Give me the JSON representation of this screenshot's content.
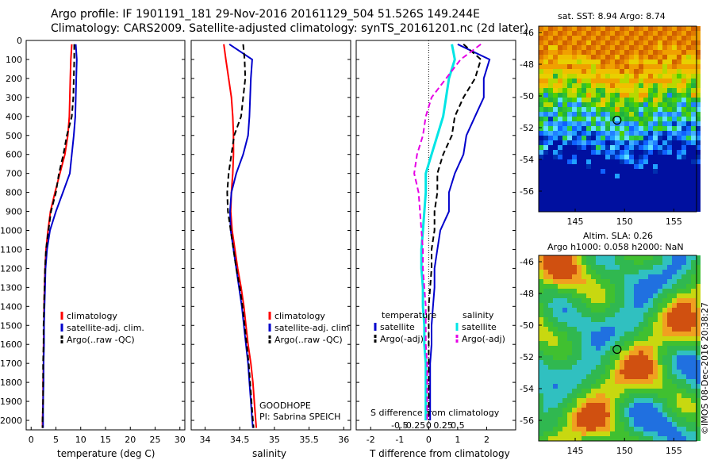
{
  "header": {
    "line1": "Argo profile: IF 1901191_181 29-Nov-2016 20161129_504 51.526S 149.244E",
    "line2": "Climatology: CARS2009. Satellite-adjusted climatology: synTS_20161201.nc (2d later)"
  },
  "maps": {
    "sst": {
      "title": "sat. SST: 8.94 Argo: 8.74"
    },
    "sla": {
      "title_line1": "Altim. SLA: 0.26",
      "title_line2": "Argo h1000: 0.058 h2000: NaN"
    },
    "lat_ticks": [
      "-46",
      "-48",
      "-50",
      "-52",
      "-54",
      "-56"
    ],
    "lon_ticks": [
      "145",
      "150",
      "155"
    ],
    "argo_marker": {
      "lon": 149.244,
      "lat": -51.526
    }
  },
  "watermark": "©IMOS 08-Dec-2016 20:38:27",
  "panels": {
    "depth_ticks": [
      "0",
      "100",
      "200",
      "300",
      "400",
      "500",
      "600",
      "700",
      "800",
      "900",
      "1000",
      "1100",
      "1200",
      "1300",
      "1400",
      "1500",
      "1600",
      "1700",
      "1800",
      "1900",
      "2000"
    ],
    "temperature": {
      "xlabel": "temperature (deg C)",
      "xticks": [
        "0",
        "5",
        "10",
        "15",
        "20",
        "25",
        "30"
      ],
      "legend": [
        "climatology",
        "satellite-adj. clim.",
        "Argo(..raw -QC)"
      ]
    },
    "salinity": {
      "xlabel": "salinity",
      "xticks": [
        "34",
        "34.5",
        "35",
        "35.5",
        "36"
      ],
      "legend": [
        "climatology",
        "satellite-adj. clim.",
        "Argo(..raw -QC)"
      ],
      "note1": "GOODHOPE",
      "note2": "PI: Sabrina SPEICH"
    },
    "difference": {
      "xlabel": "T difference from climatology",
      "top_label": "S difference from climatology",
      "t_ticks": [
        "-2",
        "-1",
        "0",
        "1",
        "2"
      ],
      "s_ticks": [
        "-0.5",
        "-0.25",
        "0",
        "0.25",
        "0.5"
      ],
      "legend_head_left": "temperature",
      "legend_head_right": "salinity",
      "legend": [
        "satellite",
        "Argo(-adj)",
        "satellite",
        "Argo(-adj)"
      ]
    }
  },
  "chart_data": [
    {
      "type": "line",
      "title": "",
      "xlabel": "temperature (deg C)",
      "ylabel": "",
      "xlim": [
        -1,
        31
      ],
      "ylim": [
        2050,
        0
      ],
      "series": [
        {
          "name": "climatology",
          "color": "#ff0000",
          "x": [
            8.2,
            8.0,
            7.9,
            7.8,
            7.7,
            7.4,
            6.8,
            5.8,
            4.8,
            3.9,
            3.4,
            3.0,
            2.8,
            2.7,
            2.6,
            2.6,
            2.5,
            2.5,
            2.4,
            2.4,
            2.3,
            2.3
          ],
          "y": [
            20,
            100,
            200,
            300,
            400,
            500,
            600,
            700,
            800,
            900,
            1000,
            1100,
            1200,
            1300,
            1400,
            1500,
            1600,
            1700,
            1800,
            1900,
            2000,
            2040
          ]
        },
        {
          "name": "satellite-adj. clim.",
          "color": "#0000cc",
          "x": [
            9.0,
            9.2,
            9.1,
            9.0,
            8.9,
            8.6,
            8.2,
            7.8,
            6.4,
            5.0,
            3.8,
            3.2,
            2.9,
            2.8,
            2.7,
            2.6,
            2.6,
            2.5,
            2.5,
            2.4,
            2.4,
            2.4
          ],
          "y": [
            20,
            100,
            200,
            300,
            400,
            500,
            600,
            700,
            800,
            900,
            1000,
            1100,
            1200,
            1300,
            1400,
            1500,
            1600,
            1700,
            1800,
            1900,
            2000,
            2040
          ]
        },
        {
          "name": "Argo(..raw -QC)",
          "color": "#000000",
          "x": [
            8.7,
            8.7,
            8.6,
            8.5,
            8.2,
            7.2,
            6.5,
            5.6,
            5.0,
            4.0,
            3.5,
            3.0,
            2.8,
            2.7,
            2.6,
            2.5,
            2.5,
            2.4,
            2.4,
            2.4,
            2.3,
            2.3
          ],
          "y": [
            20,
            100,
            200,
            300,
            400,
            500,
            600,
            700,
            800,
            900,
            1000,
            1100,
            1200,
            1300,
            1400,
            1500,
            1600,
            1700,
            1800,
            1900,
            2000,
            2040
          ]
        }
      ]
    },
    {
      "type": "line",
      "title": "",
      "xlabel": "salinity",
      "ylabel": "",
      "xlim": [
        33.8,
        36.1
      ],
      "ylim": [
        2050,
        0
      ],
      "series": [
        {
          "name": "climatology",
          "color": "#ff0000",
          "x": [
            34.27,
            34.3,
            34.34,
            34.38,
            34.4,
            34.41,
            34.41,
            34.4,
            34.38,
            34.37,
            34.39,
            34.43,
            34.47,
            34.52,
            34.56,
            34.59,
            34.62,
            34.66,
            34.69,
            34.71,
            34.73,
            34.74
          ],
          "y": [
            20,
            100,
            200,
            300,
            400,
            500,
            600,
            700,
            800,
            900,
            1000,
            1100,
            1200,
            1300,
            1400,
            1500,
            1600,
            1700,
            1800,
            1900,
            2000,
            2040
          ]
        },
        {
          "name": "satellite-adj. clim.",
          "color": "#0000cc",
          "x": [
            34.35,
            34.68,
            34.66,
            34.65,
            34.64,
            34.62,
            34.55,
            34.45,
            34.38,
            34.36,
            34.37,
            34.41,
            34.45,
            34.49,
            34.53,
            34.56,
            34.59,
            34.62,
            34.64,
            34.66,
            34.68,
            34.69
          ],
          "y": [
            20,
            100,
            200,
            300,
            400,
            500,
            600,
            700,
            800,
            900,
            1000,
            1100,
            1200,
            1300,
            1400,
            1500,
            1600,
            1700,
            1800,
            1900,
            2000,
            2040
          ]
        },
        {
          "name": "Argo(..raw -QC)",
          "color": "#000000",
          "x": [
            34.55,
            34.57,
            34.58,
            34.55,
            34.52,
            34.42,
            34.38,
            34.34,
            34.32,
            34.33,
            34.37,
            34.41,
            34.45,
            34.5,
            34.54,
            34.57,
            34.6,
            34.63,
            34.65,
            34.67,
            34.69,
            34.7
          ],
          "y": [
            20,
            100,
            200,
            300,
            400,
            500,
            600,
            700,
            800,
            900,
            1000,
            1100,
            1200,
            1300,
            1400,
            1500,
            1600,
            1700,
            1800,
            1900,
            2000,
            2040
          ]
        }
      ]
    },
    {
      "type": "line",
      "title": "",
      "xlabel": "T difference from climatology",
      "ylabel": "",
      "xlim": [
        -2.5,
        3
      ],
      "ylim": [
        2050,
        0
      ],
      "series": [
        {
          "name": "satellite",
          "color": "#0000cc",
          "x": [
            1.0,
            2.1,
            1.9,
            1.9,
            1.6,
            1.3,
            1.2,
            0.9,
            0.7,
            0.7,
            0.4,
            0.3,
            0.2,
            0.2,
            0.15,
            0.1,
            0.1,
            0.05,
            0.05,
            0.05,
            0.05
          ],
          "y": [
            20,
            100,
            200,
            300,
            400,
            500,
            600,
            700,
            800,
            900,
            1000,
            1100,
            1200,
            1300,
            1400,
            1500,
            1600,
            1700,
            1800,
            1900,
            2000
          ]
        },
        {
          "name": "Argo(-adj)",
          "color": "#000000",
          "x": [
            1.2,
            1.8,
            1.6,
            1.2,
            0.9,
            0.8,
            0.5,
            0.3,
            0.3,
            0.2,
            0.2,
            0.1,
            0.1,
            0.05,
            0.0,
            0.0,
            0.0,
            0.0,
            0.0,
            0.0,
            0.0
          ],
          "y": [
            20,
            100,
            200,
            300,
            400,
            500,
            600,
            700,
            800,
            900,
            1000,
            1100,
            1200,
            1300,
            1400,
            1500,
            1600,
            1700,
            1800,
            1900,
            2000
          ]
        },
        {
          "name": "satellite",
          "color": "#00e5e5",
          "x": [
            0.8,
            0.9,
            0.7,
            0.6,
            0.5,
            0.3,
            0.1,
            -0.1,
            -0.1,
            -0.15,
            -0.2,
            -0.25,
            -0.25,
            -0.2,
            -0.2,
            -0.15,
            -0.15,
            -0.1,
            -0.1,
            -0.1,
            -0.1
          ],
          "y": [
            20,
            100,
            200,
            300,
            400,
            500,
            600,
            700,
            800,
            900,
            1000,
            1100,
            1200,
            1300,
            1400,
            1500,
            1600,
            1700,
            1800,
            1900,
            2000
          ]
        },
        {
          "name": "Argo(-adj)",
          "color": "#e600e6",
          "x": [
            1.8,
            1.1,
            0.6,
            0.1,
            -0.1,
            -0.2,
            -0.4,
            -0.5,
            -0.35,
            -0.3,
            -0.25,
            -0.2,
            -0.2,
            -0.15,
            -0.1,
            -0.1,
            -0.1,
            -0.05,
            -0.05,
            -0.05,
            -0.05
          ],
          "y": [
            20,
            100,
            200,
            300,
            400,
            500,
            600,
            700,
            800,
            900,
            1000,
            1100,
            1200,
            1300,
            1400,
            1500,
            1600,
            1700,
            1800,
            1900,
            2000
          ]
        }
      ]
    }
  ]
}
